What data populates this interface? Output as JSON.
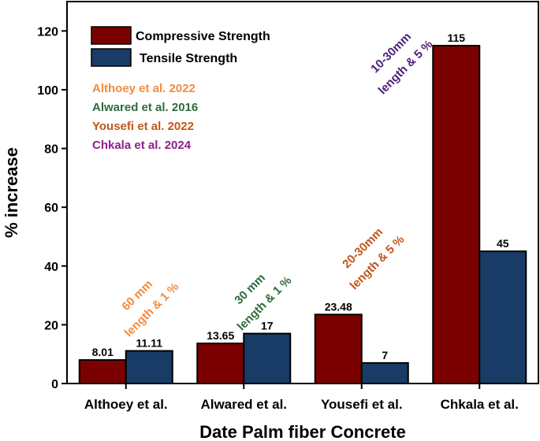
{
  "chart_data": {
    "type": "bar",
    "title": "",
    "xlabel": "Date Palm fiber Concrete",
    "ylabel": "% increase",
    "categories": [
      "Althoey et al.",
      "Alwared et al.",
      "Yousefi et al.",
      "Chkala et al."
    ],
    "series": [
      {
        "name": "Compressive Strength",
        "color": "#7b0000",
        "values": [
          8.01,
          13.65,
          23.48,
          115
        ],
        "labels": [
          "8.01",
          "13.65",
          "23.48",
          "115"
        ]
      },
      {
        "name": "Tensile Strength",
        "color": "#183c66",
        "values": [
          11.11,
          17,
          7,
          45
        ],
        "labels": [
          "11.11",
          "17",
          "7",
          "45"
        ]
      }
    ],
    "ylim": [
      0,
      130
    ],
    "yticks": [
      0,
      20,
      40,
      60,
      80,
      100,
      120
    ],
    "grid": false,
    "legend_position": "top-left",
    "references": [
      {
        "text": "Althoey et al. 2022",
        "color": "#f58a3c"
      },
      {
        "text": "Alwared et al. 2016",
        "color": "#2f6b3c"
      },
      {
        "text": "Yousefi et al. 2022",
        "color": "#c0561c"
      },
      {
        "text": "Chkala et al. 2024",
        "color": "#8b1f8b"
      }
    ],
    "annotations": [
      {
        "category": 0,
        "color": "#f58a3c",
        "lines": [
          "60 mm",
          "length & 1 %"
        ]
      },
      {
        "category": 1,
        "color": "#2f6b3c",
        "lines": [
          "30 mm",
          "length & 1 %"
        ]
      },
      {
        "category": 2,
        "color": "#c0561c",
        "lines": [
          "20-30mm",
          "length & 5 %"
        ]
      },
      {
        "category": 3,
        "color": "#4b1f7a",
        "lines": [
          "10-30mm",
          "length & 5 %"
        ]
      }
    ]
  }
}
